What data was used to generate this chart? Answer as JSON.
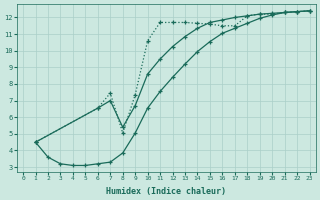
{
  "xlabel": "Humidex (Indice chaleur)",
  "bg_color": "#cce8e0",
  "grid_color": "#aacfc8",
  "line_color": "#1a6b5a",
  "xlim": [
    -0.5,
    23.5
  ],
  "ylim": [
    2.7,
    12.8
  ],
  "yticks": [
    3,
    4,
    5,
    6,
    7,
    8,
    9,
    10,
    11,
    12
  ],
  "xticks": [
    0,
    1,
    2,
    3,
    4,
    5,
    6,
    7,
    8,
    9,
    10,
    11,
    12,
    13,
    14,
    15,
    16,
    17,
    18,
    19,
    20,
    21,
    22,
    23
  ],
  "line1_x": [
    1,
    2,
    3,
    4,
    5,
    6,
    7,
    8,
    9,
    10,
    11,
    12,
    13,
    14,
    15,
    16,
    17,
    18,
    19,
    20,
    21,
    22,
    23
  ],
  "line1_y": [
    4.5,
    3.6,
    3.2,
    3.1,
    3.1,
    3.2,
    3.3,
    3.85,
    5.05,
    6.55,
    7.55,
    8.4,
    9.2,
    9.95,
    10.55,
    11.05,
    11.35,
    11.65,
    11.95,
    12.15,
    12.3,
    12.35,
    12.4
  ],
  "line2_x": [
    1,
    6,
    7,
    8,
    9,
    10,
    11,
    12,
    13,
    14,
    15,
    16,
    17,
    18,
    19,
    20,
    21,
    22,
    23
  ],
  "line2_y": [
    4.5,
    6.55,
    7.45,
    5.05,
    7.35,
    10.6,
    11.7,
    11.7,
    11.7,
    11.65,
    11.6,
    11.5,
    11.5,
    12.1,
    12.2,
    12.2,
    12.3,
    12.35,
    12.4
  ],
  "line3_x": [
    1,
    6,
    7,
    8,
    9,
    10,
    11,
    12,
    13,
    14,
    15,
    16,
    17,
    18,
    19,
    20,
    21,
    22,
    23
  ],
  "line3_y": [
    4.5,
    6.55,
    7.0,
    5.4,
    6.7,
    8.6,
    9.5,
    10.25,
    10.85,
    11.35,
    11.7,
    11.85,
    12.0,
    12.1,
    12.2,
    12.25,
    12.3,
    12.35,
    12.4
  ],
  "line1_style": "-",
  "line2_style": ":",
  "line3_style": "-"
}
